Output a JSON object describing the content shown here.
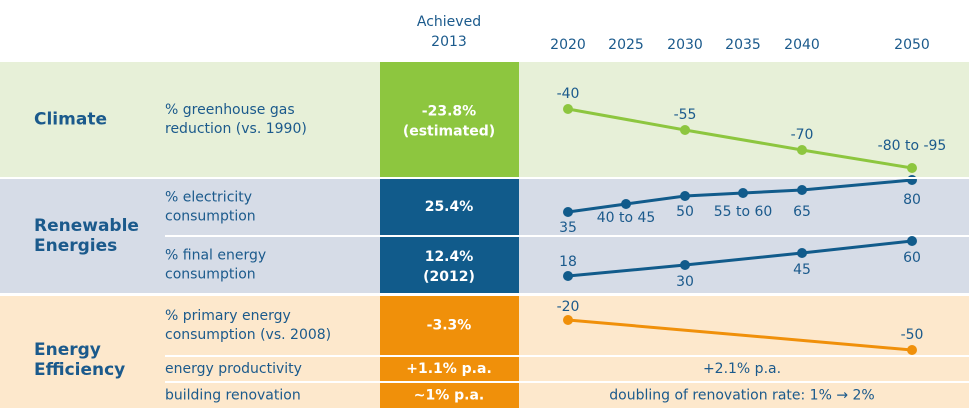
{
  "header": {
    "achieved": [
      "Achieved",
      "2013"
    ],
    "years": [
      "2020",
      "2025",
      "2030",
      "2035",
      "2040",
      "2050"
    ]
  },
  "sections": [
    {
      "title": [
        "Climate"
      ],
      "rows": [
        {
          "label": [
            "% greenhouse gas",
            "reduction (vs. 1990)"
          ],
          "achieved": "-23.8%",
          "note": "(estimated)",
          "targets": [
            {
              "year": "2020",
              "label": "-40"
            },
            {
              "year": "2030",
              "label": "-55"
            },
            {
              "year": "2040",
              "label": "-70"
            },
            {
              "year": "2050",
              "label": "-80 to -95"
            }
          ]
        }
      ]
    },
    {
      "title": [
        "Renewable",
        "Energies"
      ],
      "rows": [
        {
          "label": [
            "% electricity",
            "consumption"
          ],
          "achieved": "25.4%",
          "targets": [
            {
              "year": "2020",
              "label": "35"
            },
            {
              "year": "2025",
              "label": "40 to 45"
            },
            {
              "year": "2030",
              "label": "50"
            },
            {
              "year": "2035",
              "label": "55 to 60"
            },
            {
              "year": "2040",
              "label": "65"
            },
            {
              "year": "2050",
              "label": "80"
            }
          ]
        },
        {
          "label": [
            "% final energy",
            "consumption"
          ],
          "achieved": "12.4%",
          "note": "(2012)",
          "targets": [
            {
              "year": "2020",
              "label": "18"
            },
            {
              "year": "2030",
              "label": "30"
            },
            {
              "year": "2040",
              "label": "45"
            },
            {
              "year": "2050",
              "label": "60"
            }
          ]
        }
      ]
    },
    {
      "title": [
        "Energy",
        "Efficiency"
      ],
      "rows": [
        {
          "label": [
            "% primary energy",
            "consumption (vs. 2008)"
          ],
          "achieved": "-3.3%",
          "targets": [
            {
              "year": "2020",
              "label": "-20"
            },
            {
              "year": "2050",
              "label": "-50"
            }
          ]
        },
        {
          "label": [
            "energy productivity"
          ],
          "achieved": "+1.1% p.a.",
          "text": "+2.1% p.a."
        },
        {
          "label": [
            "building renovation"
          ],
          "achieved": "∼1% p.a.",
          "text": "doubling of renovation rate: 1% → 2%"
        }
      ]
    }
  ]
}
